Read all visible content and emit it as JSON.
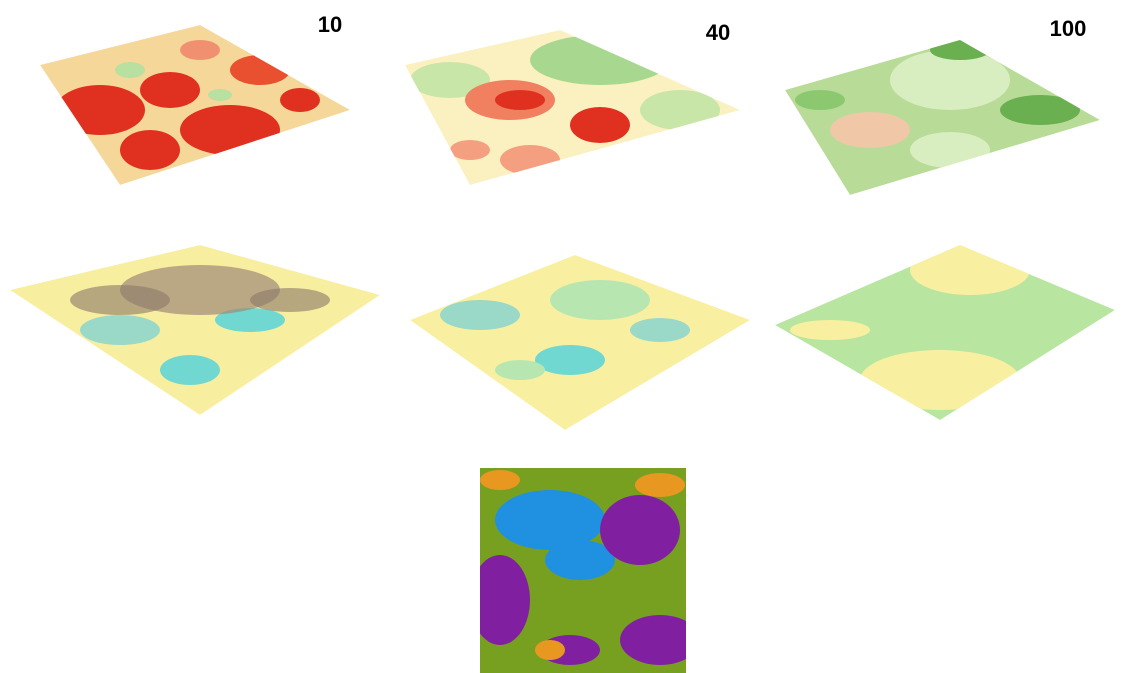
{
  "panel_labels": [
    "10",
    "40",
    "100"
  ]
}
